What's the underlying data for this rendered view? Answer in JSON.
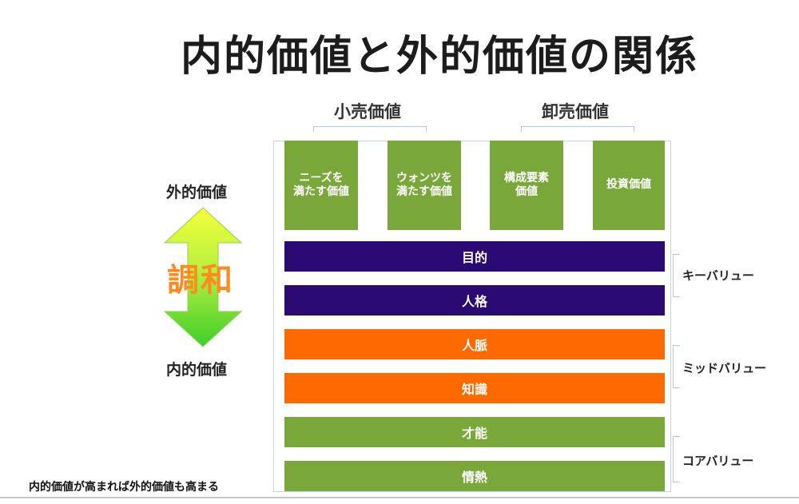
{
  "title": "内的価値と外的価値の関係",
  "groups": {
    "retail": "小売価値",
    "wholesale": "卸売価値"
  },
  "value_boxes": [
    "ニーズを\n満たす価値",
    "ウォンツを\n満たす価値",
    "構成要素\n価値",
    "投資価値"
  ],
  "side": {
    "external": "外的価値",
    "internal": "内的価値",
    "harmony": "調和"
  },
  "bars": {
    "purpose": "目的",
    "personality": "人格",
    "network": "人脈",
    "knowledge": "知識",
    "talent": "才能",
    "passion": "情熱"
  },
  "tiers": {
    "key": "キーバリュー",
    "mid": "ミッドバリュー",
    "core": "コアバリュー"
  },
  "footnote": "内的価値が高まれば外的価値も高まる",
  "colors": {
    "green": "#7aa73a",
    "purple": "#2c0a74",
    "orange": "#ff6a00",
    "harmony_text": "#ff8a1f",
    "arrow_top": "#f4ff3a",
    "arrow_bottom": "#3fcf2a"
  },
  "icons": {
    "arrow": "double-vertical-arrow"
  }
}
